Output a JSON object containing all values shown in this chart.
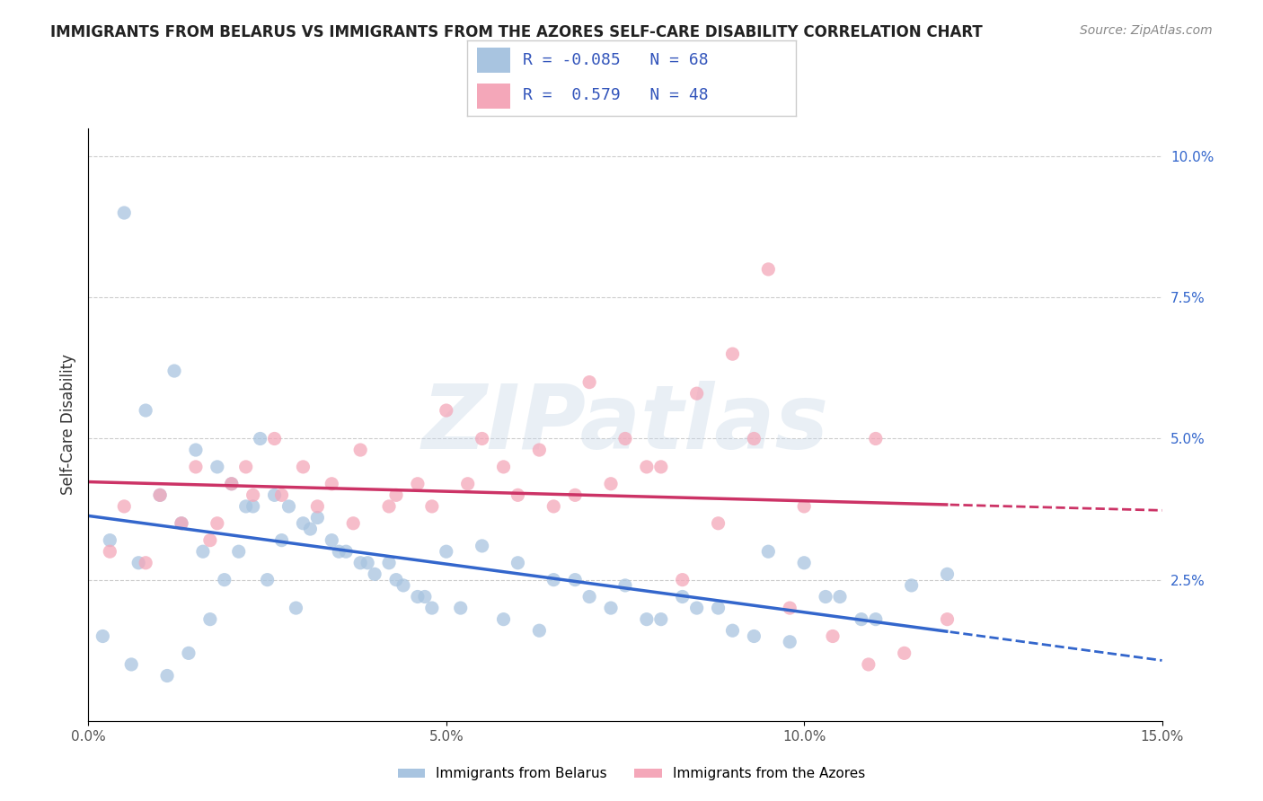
{
  "title": "IMMIGRANTS FROM BELARUS VS IMMIGRANTS FROM THE AZORES SELF-CARE DISABILITY CORRELATION CHART",
  "source": "Source: ZipAtlas.com",
  "ylabel": "Self-Care Disability",
  "watermark": "ZIPatlas",
  "legend_label_blue": "Immigrants from Belarus",
  "legend_label_pink": "Immigrants from the Azores",
  "R_blue": -0.085,
  "N_blue": 68,
  "R_pink": 0.579,
  "N_pink": 48,
  "xlim": [
    0.0,
    0.15
  ],
  "ylim": [
    0.0,
    0.105
  ],
  "xticks": [
    0.0,
    0.05,
    0.1,
    0.15
  ],
  "xtick_labels": [
    "0.0%",
    "5.0%",
    "10.0%",
    "15.0%"
  ],
  "yticks": [
    0.025,
    0.05,
    0.075,
    0.1
  ],
  "ytick_labels": [
    "2.5%",
    "5.0%",
    "7.5%",
    "10.0%"
  ],
  "color_blue": "#a8c4e0",
  "color_pink": "#f4a7b9",
  "color_line_blue": "#3366cc",
  "color_line_pink": "#cc3366",
  "background": "#ffffff",
  "grid_color": "#cccccc",
  "blue_scatter_x": [
    0.005,
    0.008,
    0.012,
    0.015,
    0.018,
    0.02,
    0.022,
    0.024,
    0.026,
    0.028,
    0.03,
    0.032,
    0.034,
    0.036,
    0.038,
    0.04,
    0.042,
    0.044,
    0.046,
    0.048,
    0.05,
    0.055,
    0.06,
    0.065,
    0.07,
    0.075,
    0.08,
    0.085,
    0.09,
    0.095,
    0.1,
    0.105,
    0.11,
    0.115,
    0.12,
    0.003,
    0.007,
    0.01,
    0.013,
    0.016,
    0.019,
    0.023,
    0.027,
    0.031,
    0.035,
    0.039,
    0.043,
    0.047,
    0.052,
    0.058,
    0.063,
    0.068,
    0.073,
    0.078,
    0.083,
    0.088,
    0.093,
    0.098,
    0.103,
    0.108,
    0.002,
    0.006,
    0.011,
    0.014,
    0.017,
    0.021,
    0.025,
    0.029
  ],
  "blue_scatter_y": [
    0.09,
    0.055,
    0.062,
    0.048,
    0.045,
    0.042,
    0.038,
    0.05,
    0.04,
    0.038,
    0.035,
    0.036,
    0.032,
    0.03,
    0.028,
    0.026,
    0.028,
    0.024,
    0.022,
    0.02,
    0.03,
    0.031,
    0.028,
    0.025,
    0.022,
    0.024,
    0.018,
    0.02,
    0.016,
    0.03,
    0.028,
    0.022,
    0.018,
    0.024,
    0.026,
    0.032,
    0.028,
    0.04,
    0.035,
    0.03,
    0.025,
    0.038,
    0.032,
    0.034,
    0.03,
    0.028,
    0.025,
    0.022,
    0.02,
    0.018,
    0.016,
    0.025,
    0.02,
    0.018,
    0.022,
    0.02,
    0.015,
    0.014,
    0.022,
    0.018,
    0.015,
    0.01,
    0.008,
    0.012,
    0.018,
    0.03,
    0.025,
    0.02
  ],
  "pink_scatter_x": [
    0.005,
    0.01,
    0.015,
    0.018,
    0.02,
    0.023,
    0.026,
    0.03,
    0.034,
    0.038,
    0.042,
    0.046,
    0.05,
    0.055,
    0.06,
    0.065,
    0.07,
    0.075,
    0.08,
    0.085,
    0.09,
    0.095,
    0.1,
    0.11,
    0.003,
    0.008,
    0.013,
    0.017,
    0.022,
    0.027,
    0.032,
    0.037,
    0.043,
    0.048,
    0.053,
    0.058,
    0.063,
    0.068,
    0.073,
    0.078,
    0.083,
    0.088,
    0.093,
    0.098,
    0.104,
    0.109,
    0.114,
    0.12
  ],
  "pink_scatter_y": [
    0.038,
    0.04,
    0.045,
    0.035,
    0.042,
    0.04,
    0.05,
    0.045,
    0.042,
    0.048,
    0.038,
    0.042,
    0.055,
    0.05,
    0.04,
    0.038,
    0.06,
    0.05,
    0.045,
    0.058,
    0.065,
    0.08,
    0.038,
    0.05,
    0.03,
    0.028,
    0.035,
    0.032,
    0.045,
    0.04,
    0.038,
    0.035,
    0.04,
    0.038,
    0.042,
    0.045,
    0.048,
    0.04,
    0.042,
    0.045,
    0.025,
    0.035,
    0.05,
    0.02,
    0.015,
    0.01,
    0.012,
    0.018
  ]
}
